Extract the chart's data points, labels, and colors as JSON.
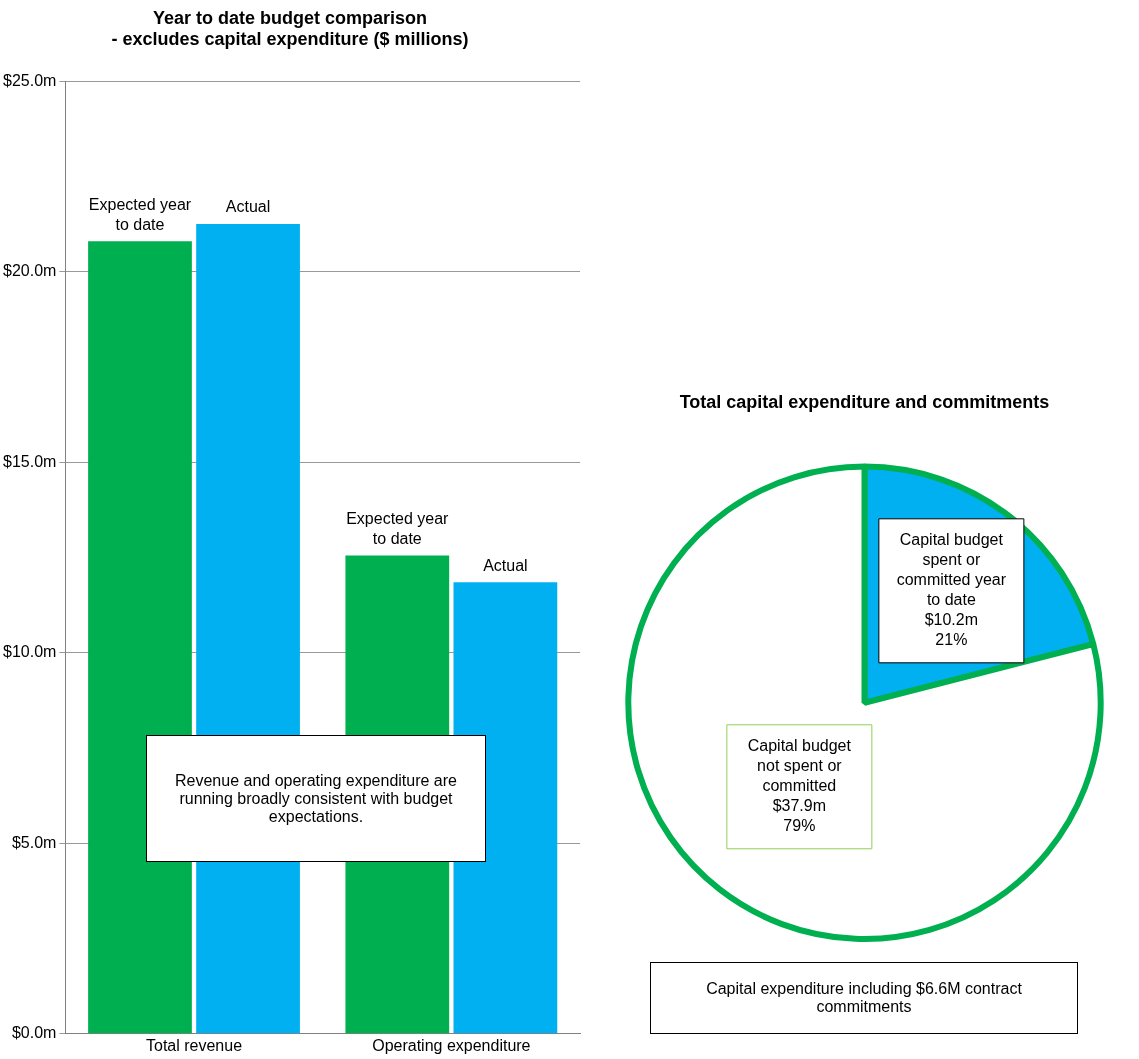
{
  "chart_data": [
    {
      "type": "bar",
      "title": "Year to date budget comparison\n- excludes capital expenditure ($ millions)",
      "categories": [
        "Total revenue",
        "Operating expenditure"
      ],
      "series": [
        {
          "name": "Expected year to date",
          "color": "#00b050",
          "values": [
            20.8,
            12.55
          ]
        },
        {
          "name": "Actual",
          "color": "#00b0f0",
          "values": [
            21.25,
            11.85
          ]
        }
      ],
      "ylim": [
        0,
        25
      ],
      "yticks": [
        {
          "value": 0,
          "label": "$0.0m"
        },
        {
          "value": 5,
          "label": "$5.0m"
        },
        {
          "value": 10,
          "label": "$10.0m"
        },
        {
          "value": 15,
          "label": "$15.0m"
        },
        {
          "value": 20,
          "label": "$20.0m"
        },
        {
          "value": 25,
          "label": "$25.0m"
        }
      ],
      "grid": "y",
      "legend": false,
      "annotations": [
        "Revenue and operating expenditure are running broadly consistent with budget expectations."
      ]
    },
    {
      "type": "pie",
      "title": "Total capital expenditure and commitments",
      "categories": [
        "Capital budget spent or committed year to date\n$10.2m",
        "Capital budget not spent or committed\n$37.9m"
      ],
      "values": [
        21,
        79
      ],
      "colors": [
        "#00b0f0",
        "#ffffff"
      ],
      "value_labels": [
        "21%",
        "79%"
      ],
      "legend": false,
      "annotations": [
        "Capital expenditure including $6.6M contract commitments"
      ]
    }
  ]
}
